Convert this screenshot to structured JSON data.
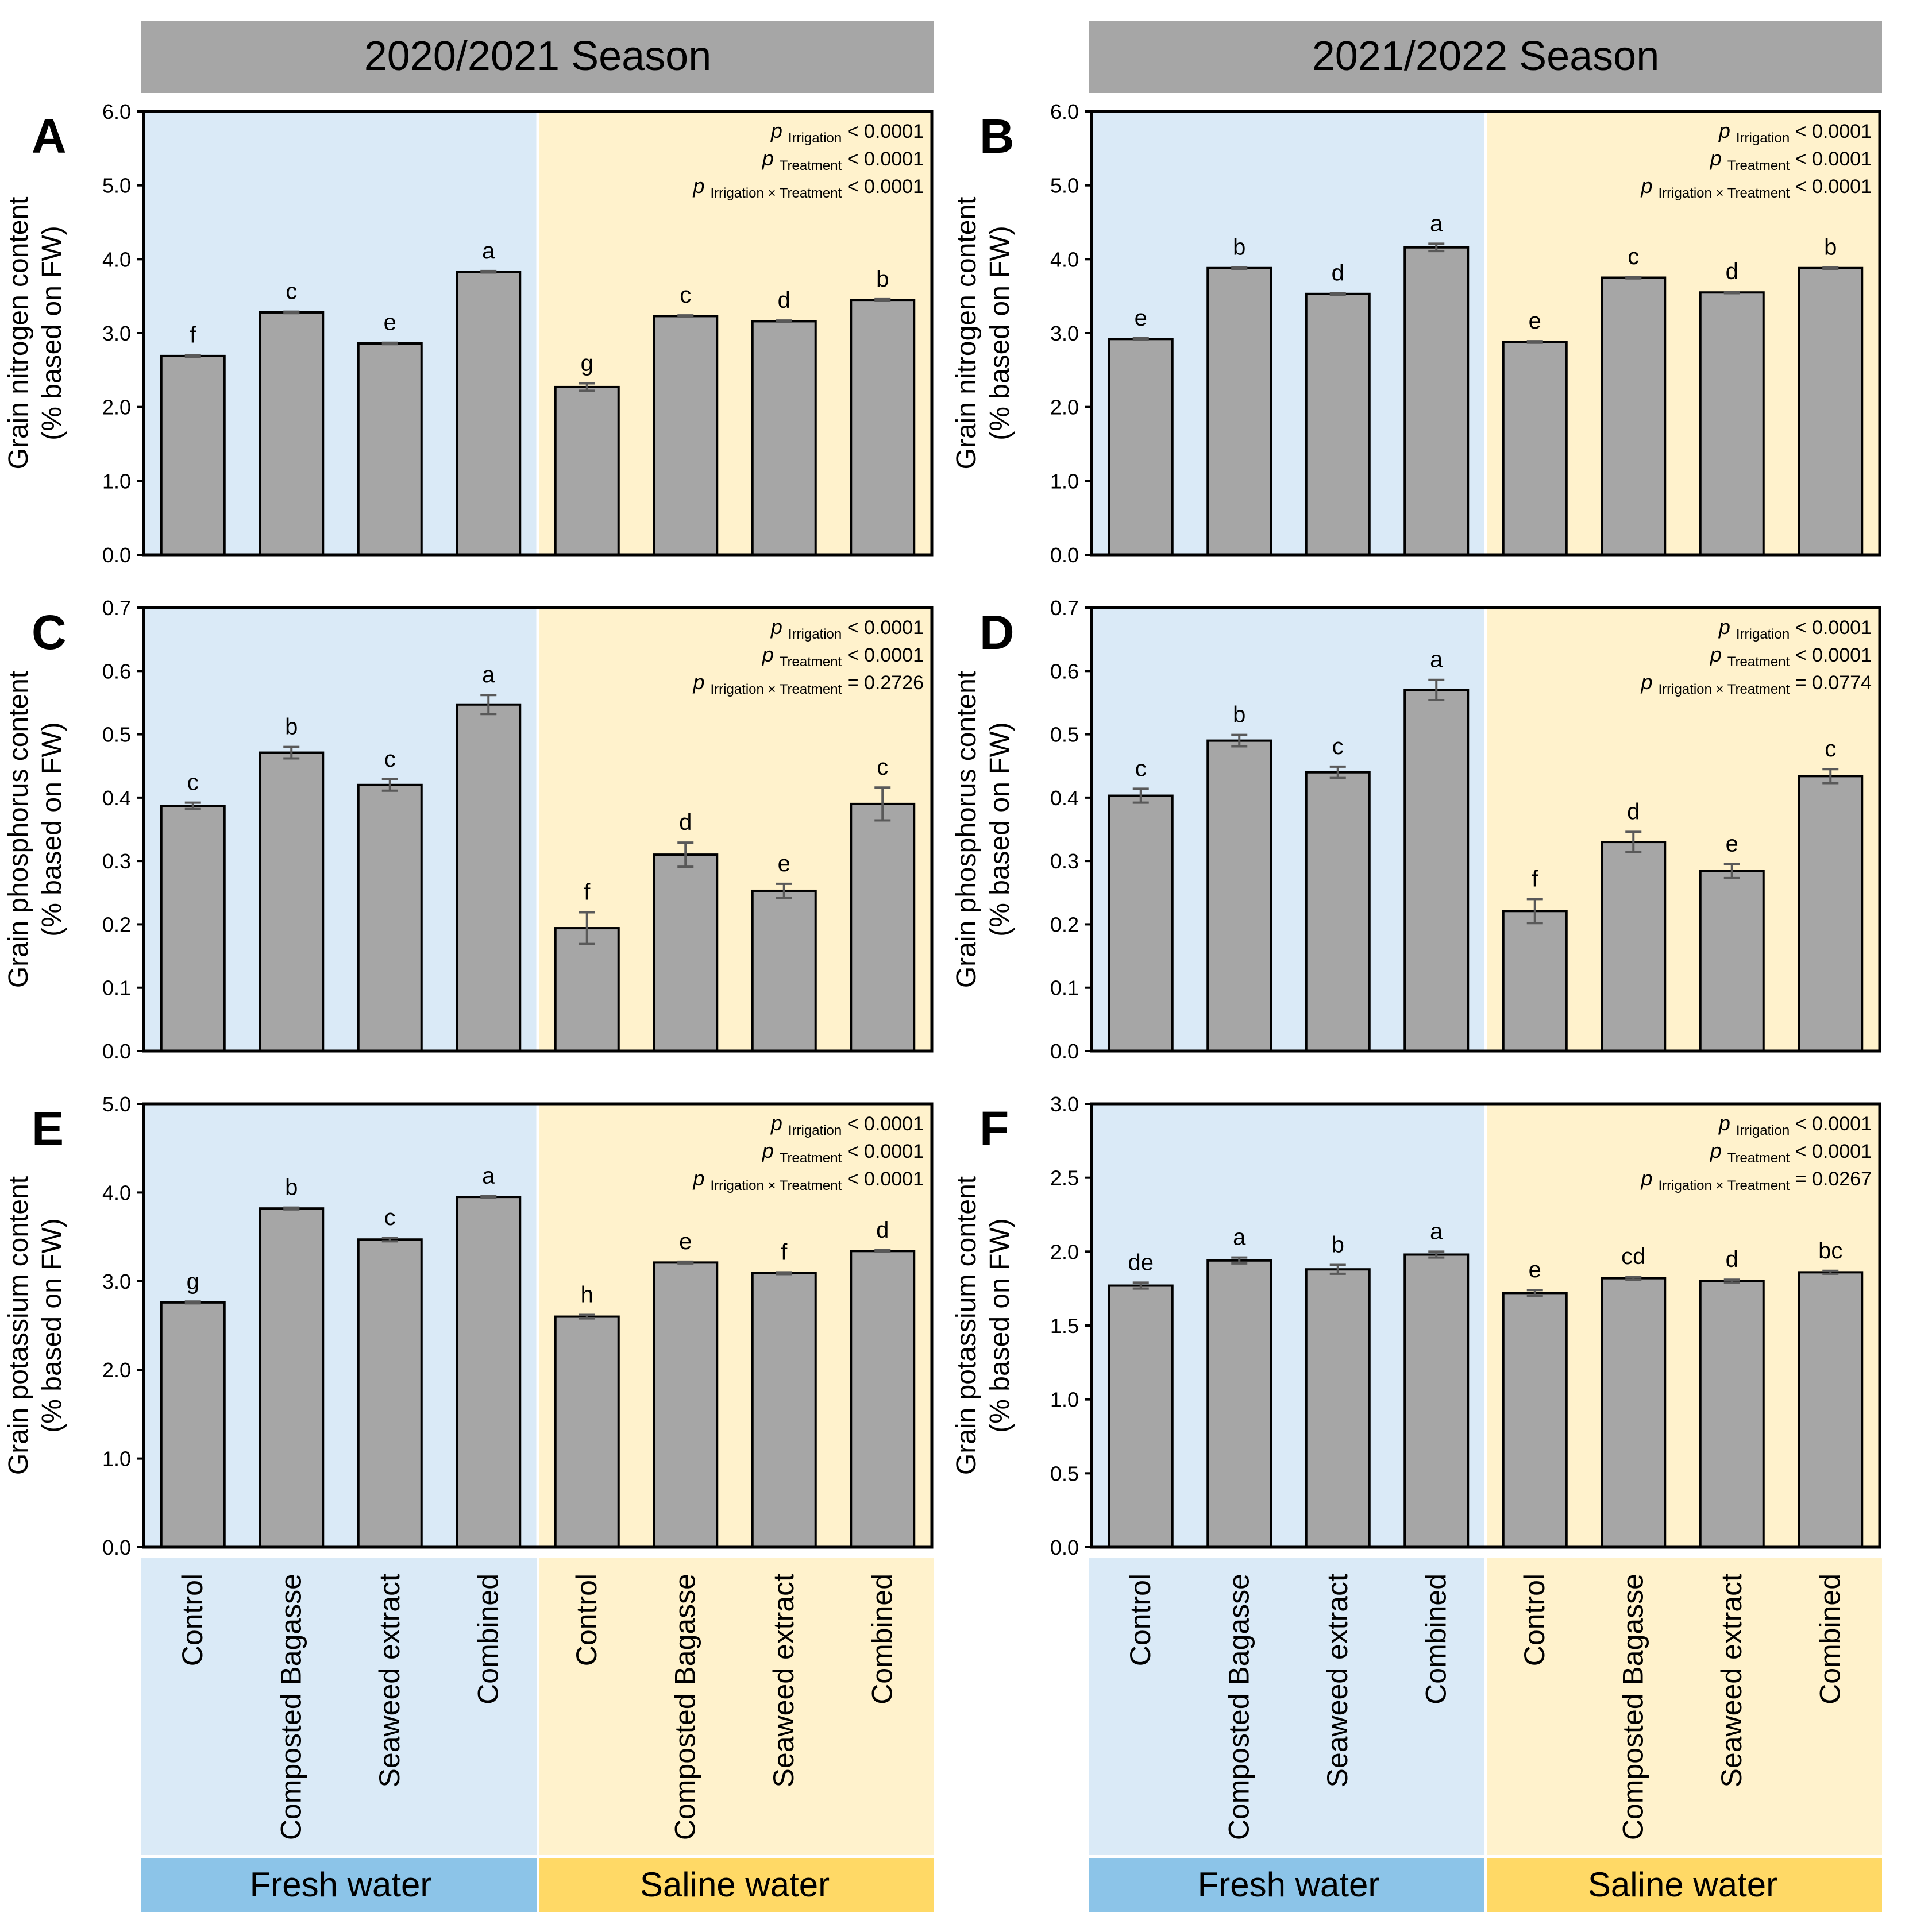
{
  "colors": {
    "fresh_bg": "#daeaf7",
    "saline_bg": "#fff2cc",
    "fresh_label_bg": "#8cc4e8",
    "saline_label_bg": "#ffd966",
    "bar_fill": "#a6a6a6",
    "header_bg": "#a6a6a6",
    "error_bar": "#595959"
  },
  "seasons": [
    "2020/2021 Season",
    "2021/2022 Season"
  ],
  "x_categories": [
    "Control",
    "Composted Bagasse",
    "Seaweed extract",
    "Combined",
    "Control",
    "Composted Bagasse",
    "Seaweed extract",
    "Combined"
  ],
  "groups": [
    "Fresh water",
    "Saline water"
  ],
  "stats_labels": {
    "p": "p",
    "irrigation": "Irrigation",
    "treatment": "Treatment",
    "interaction": "Irrigation × Treatment"
  },
  "chart_data": [
    {
      "panel": "A",
      "type": "bar",
      "season": "2020/2021 Season",
      "ylabel": [
        "Grain nitrogen content",
        "(% based on FW)"
      ],
      "ylim": [
        0,
        6
      ],
      "yticks": [
        "0.0",
        "1.0",
        "2.0",
        "3.0",
        "4.0",
        "5.0",
        "6.0"
      ],
      "values": [
        2.69,
        3.28,
        2.86,
        3.83,
        2.27,
        3.23,
        3.16,
        3.45
      ],
      "errors": [
        0.01,
        0.01,
        0.01,
        0.01,
        0.05,
        0.01,
        0.01,
        0.01
      ],
      "letters": [
        "f",
        "c",
        "e",
        "a",
        "g",
        "c",
        "d",
        "b"
      ],
      "stats": [
        "< 0.0001",
        "< 0.0001",
        "< 0.0001"
      ]
    },
    {
      "panel": "B",
      "type": "bar",
      "season": "2021/2022 Season",
      "ylabel": [
        "Grain nitrogen content",
        "(% based on FW)"
      ],
      "ylim": [
        0,
        6
      ],
      "yticks": [
        "0.0",
        "1.0",
        "2.0",
        "3.0",
        "4.0",
        "5.0",
        "6.0"
      ],
      "values": [
        2.92,
        3.88,
        3.53,
        4.16,
        2.88,
        3.75,
        3.55,
        3.88
      ],
      "errors": [
        0.01,
        0.01,
        0.01,
        0.05,
        0.01,
        0.01,
        0.01,
        0.01
      ],
      "letters": [
        "e",
        "b",
        "d",
        "a",
        "e",
        "c",
        "d",
        "b"
      ],
      "stats": [
        "< 0.0001",
        "< 0.0001",
        "< 0.0001"
      ]
    },
    {
      "panel": "C",
      "type": "bar",
      "season": "2020/2021 Season",
      "ylabel": [
        "Grain phosphorus content",
        "(% based on FW)"
      ],
      "ylim": [
        0,
        0.7
      ],
      "yticks": [
        "0.0",
        "0.1",
        "0.2",
        "0.3",
        "0.4",
        "0.5",
        "0.6",
        "0.7"
      ],
      "values": [
        0.387,
        0.471,
        0.42,
        0.547,
        0.194,
        0.31,
        0.253,
        0.39
      ],
      "errors": [
        0.005,
        0.009,
        0.009,
        0.015,
        0.025,
        0.019,
        0.011,
        0.026
      ],
      "letters": [
        "c",
        "b",
        "c",
        "a",
        "f",
        "d",
        "e",
        "c"
      ],
      "stats": [
        "< 0.0001",
        "< 0.0001",
        "= 0.2726"
      ]
    },
    {
      "panel": "D",
      "type": "bar",
      "season": "2021/2022 Season",
      "ylabel": [
        "Grain phosphorus content",
        "(% based on FW)"
      ],
      "ylim": [
        0,
        0.7
      ],
      "yticks": [
        "0.0",
        "0.1",
        "0.2",
        "0.3",
        "0.4",
        "0.5",
        "0.6",
        "0.7"
      ],
      "values": [
        0.403,
        0.49,
        0.44,
        0.57,
        0.221,
        0.33,
        0.284,
        0.434
      ],
      "errors": [
        0.011,
        0.009,
        0.009,
        0.016,
        0.019,
        0.016,
        0.011,
        0.011
      ],
      "letters": [
        "c",
        "b",
        "c",
        "a",
        "f",
        "d",
        "e",
        "c"
      ],
      "stats": [
        "< 0.0001",
        "< 0.0001",
        "= 0.0774"
      ]
    },
    {
      "panel": "E",
      "type": "bar",
      "season": "2020/2021 Season",
      "ylabel": [
        "Grain potassium content",
        "(% based on FW)"
      ],
      "ylim": [
        0,
        5
      ],
      "yticks": [
        "0.0",
        "1.0",
        "2.0",
        "3.0",
        "4.0",
        "5.0"
      ],
      "values": [
        2.76,
        3.82,
        3.47,
        3.95,
        2.6,
        3.21,
        3.09,
        3.34
      ],
      "errors": [
        0.01,
        0.01,
        0.02,
        0.01,
        0.02,
        0.01,
        0.01,
        0.01
      ],
      "letters": [
        "g",
        "b",
        "c",
        "a",
        "h",
        "e",
        "f",
        "d"
      ],
      "stats": [
        "< 0.0001",
        "< 0.0001",
        "< 0.0001"
      ]
    },
    {
      "panel": "F",
      "type": "bar",
      "season": "2021/2022 Season",
      "ylabel": [
        "Grain potassium content",
        "(% based on FW)"
      ],
      "ylim": [
        0,
        3
      ],
      "yticks": [
        "0.0",
        "0.5",
        "1.0",
        "1.5",
        "2.0",
        "2.5",
        "3.0"
      ],
      "values": [
        1.77,
        1.94,
        1.88,
        1.98,
        1.72,
        1.82,
        1.8,
        1.86
      ],
      "errors": [
        0.02,
        0.02,
        0.03,
        0.02,
        0.02,
        0.01,
        0.01,
        0.01
      ],
      "letters": [
        "de",
        "a",
        "b",
        "a",
        "e",
        "cd",
        "d",
        "bc"
      ],
      "stats": [
        "< 0.0001",
        "< 0.0001",
        "= 0.0267"
      ]
    }
  ]
}
